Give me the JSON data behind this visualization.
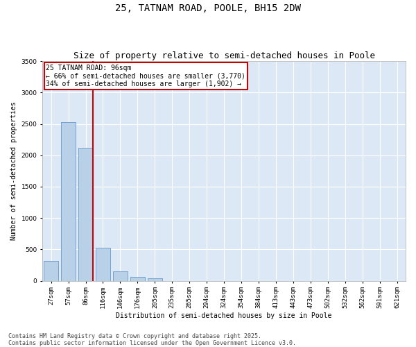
{
  "title": "25, TATNAM ROAD, POOLE, BH15 2DW",
  "subtitle": "Size of property relative to semi-detached houses in Poole",
  "xlabel": "Distribution of semi-detached houses by size in Poole",
  "ylabel": "Number of semi-detached properties",
  "categories": [
    "27sqm",
    "57sqm",
    "86sqm",
    "116sqm",
    "146sqm",
    "176sqm",
    "205sqm",
    "235sqm",
    "265sqm",
    "294sqm",
    "324sqm",
    "354sqm",
    "384sqm",
    "413sqm",
    "443sqm",
    "473sqm",
    "502sqm",
    "532sqm",
    "562sqm",
    "591sqm",
    "621sqm"
  ],
  "values": [
    320,
    2530,
    2120,
    530,
    155,
    65,
    40,
    0,
    0,
    0,
    0,
    0,
    0,
    0,
    0,
    0,
    0,
    0,
    0,
    0,
    0
  ],
  "bar_color": "#b8d0e8",
  "bar_edge_color": "#6699cc",
  "vline_color": "#cc0000",
  "vline_pos": 2.43,
  "annotation_text": "25 TATNAM ROAD: 96sqm\n← 66% of semi-detached houses are smaller (3,770)\n34% of semi-detached houses are larger (1,902) →",
  "annotation_box_edgecolor": "#cc0000",
  "ylim": [
    0,
    3500
  ],
  "yticks": [
    0,
    500,
    1000,
    1500,
    2000,
    2500,
    3000,
    3500
  ],
  "fig_bg_color": "#ffffff",
  "plot_bg_color": "#dce8f5",
  "grid_color": "#ffffff",
  "footer_line1": "Contains HM Land Registry data © Crown copyright and database right 2025.",
  "footer_line2": "Contains public sector information licensed under the Open Government Licence v3.0.",
  "title_fontsize": 10,
  "subtitle_fontsize": 9,
  "axis_label_fontsize": 7,
  "tick_fontsize": 6.5,
  "annotation_fontsize": 7,
  "footer_fontsize": 6
}
